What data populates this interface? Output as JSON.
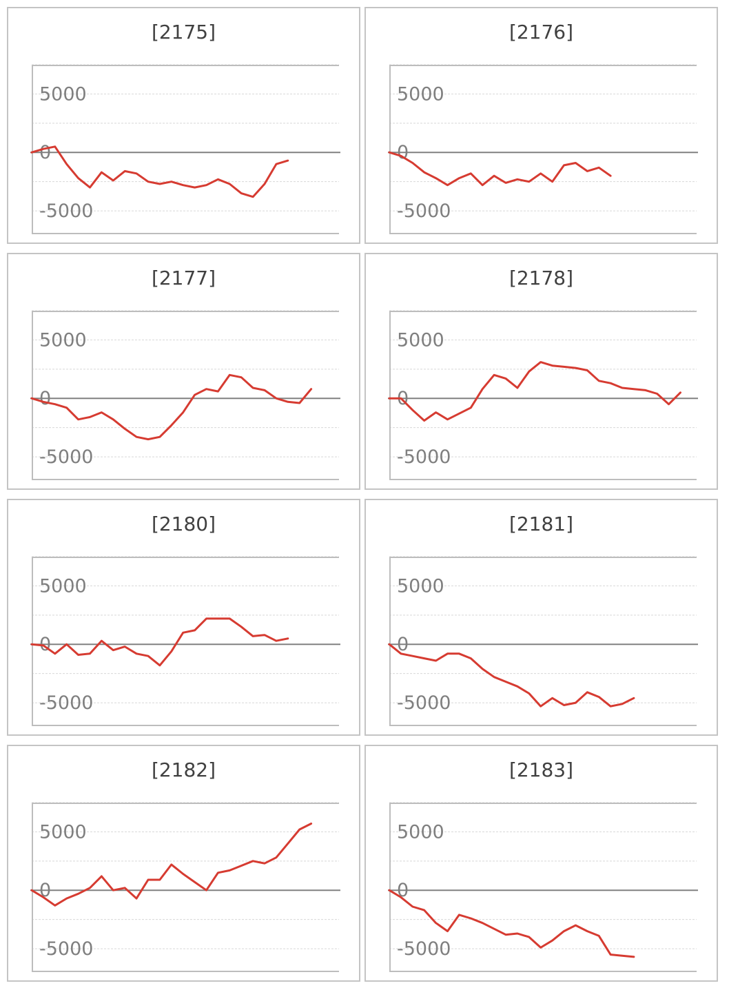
{
  "colors": {
    "series": "#d63b31",
    "zero_line": "#808080",
    "grid": "#d8d8d8",
    "frame": "#bdbdbd",
    "panel_border": "#c4c4c4"
  },
  "chart_data": [
    {
      "type": "line",
      "title": "[2175]",
      "ylim": [
        -7000,
        7500
      ],
      "yticks": [
        5000,
        0,
        -5000
      ],
      "grid": true,
      "values": [
        0,
        300,
        500,
        -1000,
        -2200,
        -3000,
        -1700,
        -2400,
        -1600,
        -1800,
        -2500,
        -2700,
        -2500,
        -2800,
        -3000,
        -2800,
        -2300,
        -2700,
        -3500,
        -3800,
        -2700,
        -1000,
        -700
      ]
    },
    {
      "type": "line",
      "title": "[2176]",
      "ylim": [
        -7000,
        7500
      ],
      "yticks": [
        5000,
        0,
        -5000
      ],
      "grid": true,
      "values": [
        0,
        -300,
        -900,
        -1700,
        -2200,
        -2800,
        -2200,
        -1800,
        -2800,
        -2000,
        -2600,
        -2300,
        -2500,
        -1800,
        -2500,
        -1100,
        -900,
        -1600,
        -1300,
        -2000
      ]
    },
    {
      "type": "line",
      "title": "[2177]",
      "ylim": [
        -7000,
        7500
      ],
      "yticks": [
        5000,
        0,
        -5000
      ],
      "grid": true,
      "values": [
        0,
        -300,
        -500,
        -800,
        -1800,
        -1600,
        -1200,
        -1800,
        -2600,
        -3300,
        -3500,
        -3300,
        -2300,
        -1200,
        300,
        800,
        600,
        2000,
        1800,
        900,
        700,
        0,
        -300,
        -400,
        800
      ]
    },
    {
      "type": "line",
      "title": "[2178]",
      "ylim": [
        -7000,
        7500
      ],
      "yticks": [
        5000,
        0,
        -5000
      ],
      "grid": true,
      "values": [
        0,
        0,
        -1000,
        -1900,
        -1200,
        -1800,
        -1300,
        -800,
        800,
        2000,
        1700,
        900,
        2300,
        3100,
        2800,
        2700,
        2600,
        2400,
        1500,
        1300,
        900,
        800,
        700,
        400,
        -500,
        500
      ]
    },
    {
      "type": "line",
      "title": "[2180]",
      "ylim": [
        -7000,
        7500
      ],
      "yticks": [
        5000,
        0,
        -5000
      ],
      "grid": true,
      "values": [
        0,
        -100,
        -800,
        0,
        -900,
        -800,
        300,
        -500,
        -200,
        -800,
        -1000,
        -1800,
        -600,
        1000,
        1200,
        2200,
        2200,
        2200,
        1500,
        700,
        800,
        300,
        500
      ]
    },
    {
      "type": "line",
      "title": "[2181]",
      "ylim": [
        -7000,
        7500
      ],
      "yticks": [
        5000,
        0,
        -5000
      ],
      "grid": true,
      "values": [
        0,
        -800,
        -1000,
        -1200,
        -1400,
        -800,
        -800,
        -1200,
        -2100,
        -2800,
        -3200,
        -3600,
        -4200,
        -5300,
        -4600,
        -5200,
        -5000,
        -4100,
        -4500,
        -5300,
        -5100,
        -4600
      ]
    },
    {
      "type": "line",
      "title": "[2182]",
      "ylim": [
        -7000,
        7500
      ],
      "yticks": [
        5000,
        0,
        -5000
      ],
      "grid": true,
      "values": [
        0,
        -600,
        -1300,
        -700,
        -300,
        200,
        1200,
        0,
        200,
        -700,
        900,
        900,
        2200,
        1400,
        700,
        0,
        1500,
        1700,
        2100,
        2500,
        2300,
        2800,
        4000,
        5200,
        5700
      ]
    },
    {
      "type": "line",
      "title": "[2183]",
      "ylim": [
        -7000,
        7500
      ],
      "yticks": [
        5000,
        0,
        -5000
      ],
      "grid": true,
      "values": [
        0,
        -600,
        -1400,
        -1700,
        -2800,
        -3500,
        -2100,
        -2400,
        -2800,
        -3300,
        -3800,
        -3700,
        -4000,
        -4900,
        -4300,
        -3500,
        -3000,
        -3500,
        -3900,
        -5500,
        -5600,
        -5700
      ]
    }
  ]
}
